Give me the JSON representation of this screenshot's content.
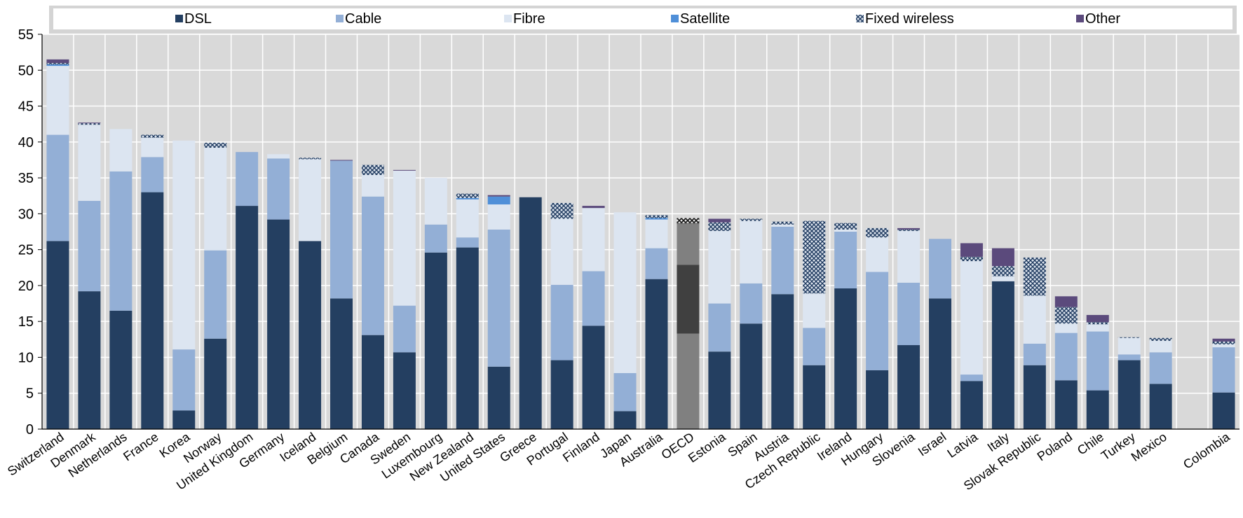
{
  "chart_data": {
    "type": "bar",
    "stacked": true,
    "title": "",
    "xlabel": "",
    "ylabel": "",
    "ylim": [
      0,
      55
    ],
    "yticks": [
      0,
      5,
      10,
      15,
      20,
      25,
      30,
      35,
      40,
      45,
      50,
      55
    ],
    "grid": true,
    "legend_position": "top",
    "categories": [
      "Switzerland",
      "Denmark",
      "Netherlands",
      "France",
      "Korea",
      "Norway",
      "United Kingdom",
      "Germany",
      "Iceland",
      "Belgium",
      "Canada",
      "Sweden",
      "Luxembourg",
      "New Zealand",
      "United States",
      "Greece",
      "Portugal",
      "Finland",
      "Japan",
      "Australia",
      "OECD",
      "Estonia",
      "Spain",
      "Austria",
      "Czech Republic",
      "Ireland",
      "Hungary",
      "Slovenia",
      "Israel",
      "Latvia",
      "Italy",
      "Slovak Republic",
      "Poland",
      "Chile",
      "Turkey",
      "Mexico",
      "",
      "Colombia"
    ],
    "series": [
      {
        "name": "DSL",
        "color": "#243f61",
        "values": [
          26.2,
          19.2,
          16.5,
          33.0,
          2.6,
          12.6,
          31.1,
          29.2,
          26.2,
          18.2,
          13.1,
          10.7,
          24.6,
          25.3,
          8.7,
          32.3,
          9.6,
          14.4,
          2.5,
          20.9,
          13.3,
          10.8,
          14.7,
          18.8,
          8.9,
          19.6,
          8.2,
          11.7,
          18.2,
          6.7,
          20.6,
          8.9,
          6.8,
          5.4,
          9.6,
          6.3,
          0,
          5.1
        ]
      },
      {
        "name": "Cable",
        "color": "#93afd6",
        "values": [
          14.8,
          12.6,
          19.4,
          4.9,
          8.5,
          12.3,
          7.5,
          8.5,
          0,
          19.2,
          19.3,
          6.5,
          3.9,
          1.4,
          19.1,
          0,
          10.5,
          7.6,
          5.3,
          4.3,
          9.6,
          6.7,
          5.6,
          9.4,
          5.2,
          7.9,
          13.7,
          8.7,
          8.3,
          0.9,
          0,
          3.0,
          6.6,
          8.2,
          0.8,
          4.4,
          0,
          6.3
        ]
      },
      {
        "name": "Fibre",
        "color": "#dce5f1",
        "values": [
          9.6,
          10.6,
          5.9,
          2.7,
          29.1,
          14.3,
          0,
          0.6,
          11.4,
          0,
          3.0,
          18.8,
          6.5,
          5.3,
          3.5,
          0,
          9.2,
          8.8,
          22.4,
          4.0,
          5.7,
          10.1,
          8.7,
          0.3,
          4.8,
          0.3,
          4.8,
          7.2,
          0,
          15.8,
          0.7,
          6.7,
          1.3,
          1.0,
          2.3,
          1.6,
          0,
          0.4
        ]
      },
      {
        "name": "Satellite",
        "color": "#4f8fd8",
        "values": [
          0.2,
          0,
          0,
          0,
          0,
          0,
          0,
          0,
          0,
          0,
          0,
          0,
          0,
          0.2,
          1.1,
          0,
          0,
          0,
          0,
          0.2,
          0.1,
          0,
          0,
          0,
          0,
          0,
          0,
          0,
          0,
          0,
          0,
          0,
          0,
          0,
          0,
          0,
          0,
          0
        ]
      },
      {
        "name": "Fixed wireless",
        "color": "#9bb0c8",
        "values": [
          0.2,
          0.2,
          0,
          0.4,
          0,
          0.7,
          0,
          0,
          0.2,
          0,
          1.4,
          0,
          0,
          0.6,
          0,
          0,
          2.2,
          0,
          0,
          0.4,
          0.7,
          1.2,
          0.3,
          0.4,
          10.1,
          0.9,
          1.3,
          0.2,
          0,
          0.6,
          1.4,
          5.3,
          2.3,
          0.3,
          0.1,
          0.4,
          0,
          0.4
        ]
      },
      {
        "name": "Other",
        "color": "#5b4a7c",
        "values": [
          0.5,
          0.1,
          0,
          0,
          0,
          0,
          0,
          0,
          0,
          0.1,
          0,
          0.1,
          0,
          0,
          0.2,
          0,
          0,
          0.3,
          0,
          0,
          0,
          0.5,
          0,
          0,
          0,
          0,
          0,
          0.2,
          0,
          1.9,
          2.5,
          0,
          1.5,
          1.0,
          0,
          0,
          0,
          0.4
        ]
      }
    ]
  }
}
